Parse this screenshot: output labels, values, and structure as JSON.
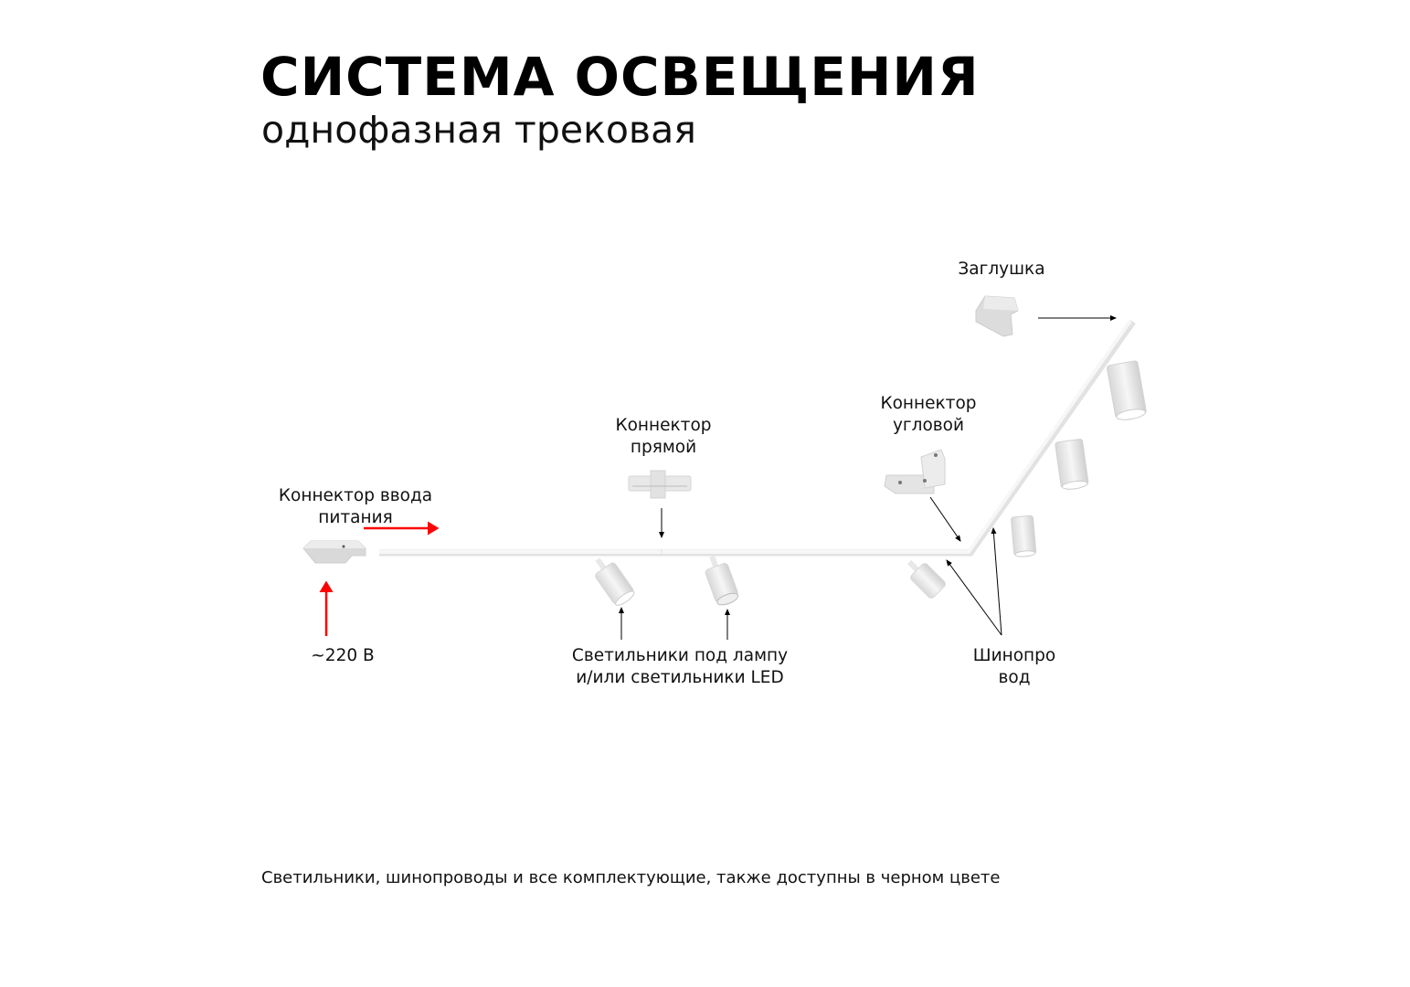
{
  "header": {
    "title": "СИСТЕМА ОСВЕЩЕНИЯ",
    "subtitle": "однофазная трековая"
  },
  "labels": {
    "power_connector": [
      "Коннектор ввода",
      "питания"
    ],
    "voltage": "~220 В",
    "straight_connector": [
      "Коннектор",
      "прямой"
    ],
    "corner_connector": [
      "Коннектор",
      "угловой"
    ],
    "end_cap": "Заглушка",
    "luminaires": [
      "Светильники под лампу",
      "и/или светильники LED"
    ],
    "busbar": [
      "Шинопро",
      "вод"
    ]
  },
  "footer": {
    "note": "Светильники, шинопроводы и все комплектующие, также доступны в черном цвете"
  },
  "colors": {
    "power_arrow": "#ff0000",
    "pointer_arrow": "#000000",
    "track": "#f2f2f2",
    "component": "#e6e6e6"
  }
}
